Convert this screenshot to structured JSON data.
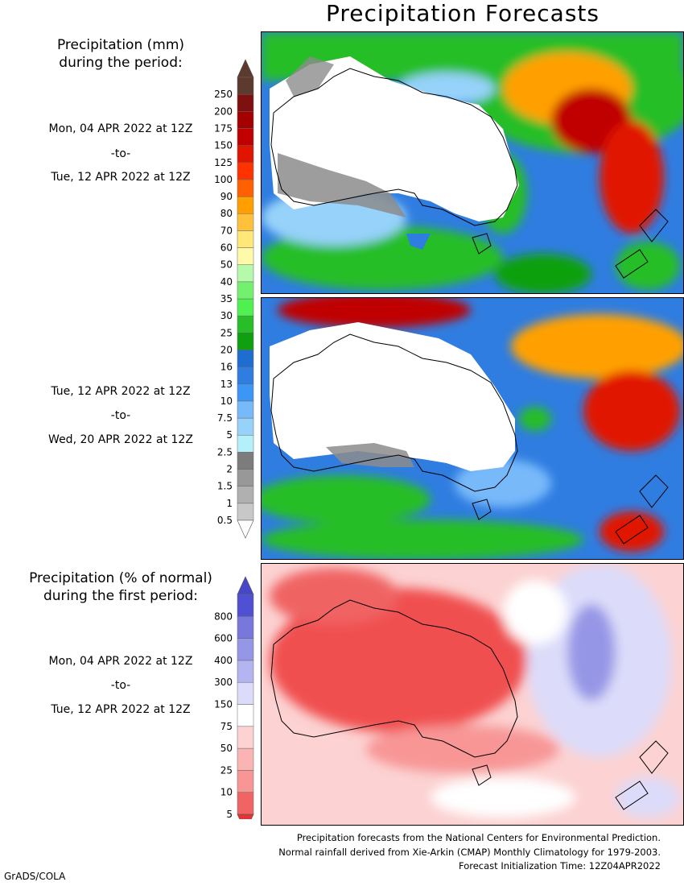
{
  "title": "Precipitation Forecasts",
  "mm_legend": {
    "header_line1": "Precipitation (mm)",
    "header_line2": "during the period:",
    "levels": [
      "0.5",
      "1",
      "1.5",
      "2",
      "2.5",
      "5",
      "7.5",
      "10",
      "13",
      "16",
      "20",
      "25",
      "30",
      "35",
      "40",
      "50",
      "60",
      "70",
      "80",
      "90",
      "100",
      "125",
      "150",
      "175",
      "200",
      "250"
    ],
    "colors": [
      "#c8c8c8",
      "#b0b0b0",
      "#989898",
      "#7c7c7c",
      "#b4f0fa",
      "#96d2fa",
      "#78b9fa",
      "#3c96f5",
      "#2f7de0",
      "#1e6ed2",
      "#0fa00f",
      "#28be28",
      "#50f050",
      "#73f06e",
      "#b4faaa",
      "#fffaaa",
      "#ffe878",
      "#ffc03c",
      "#ffa000",
      "#ff6000",
      "#ff3200",
      "#e11400",
      "#c00000",
      "#a50000",
      "#7f1010",
      "#5c3a2e"
    ],
    "cap_low": "#ffffff",
    "cap_high": "#5c3a2e"
  },
  "period1": {
    "start": "Mon, 04 APR 2022 at 12Z",
    "sep": "-to-",
    "end": "Tue, 12 APR 2022 at 12Z"
  },
  "period2": {
    "start": "Tue, 12 APR 2022 at 12Z",
    "sep": "-to-",
    "end": "Wed, 20 APR 2022 at 12Z"
  },
  "pct_legend": {
    "header_line1": "Precipitation (% of normal)",
    "header_line2": "during the first period:",
    "levels": [
      "5",
      "10",
      "25",
      "50",
      "75",
      "150",
      "300",
      "400",
      "600",
      "800"
    ],
    "colors": [
      "#f06464",
      "#f89696",
      "#fab4b4",
      "#fcd2d2",
      "#ffffff",
      "#dcdcfa",
      "#b4b4f0",
      "#9696e6",
      "#7878dc",
      "#5050d2"
    ],
    "cap_low": "#e63232",
    "cap_high": "#4646c8"
  },
  "period3": {
    "start": "Mon, 04 APR 2022 at 12Z",
    "sep": "-to-",
    "end": "Tue, 12 APR 2022 at 12Z"
  },
  "footer": {
    "line1": "Precipitation forecasts from the National Centers for Environmental Prediction.",
    "line2": "Normal rainfall derived from Xie-Arkin (CMAP) Monthly Climatology for 1979-2003.",
    "line3": "Forecast Initialization Time: 12Z04APR2022"
  },
  "credit": "GrADS/COLA"
}
